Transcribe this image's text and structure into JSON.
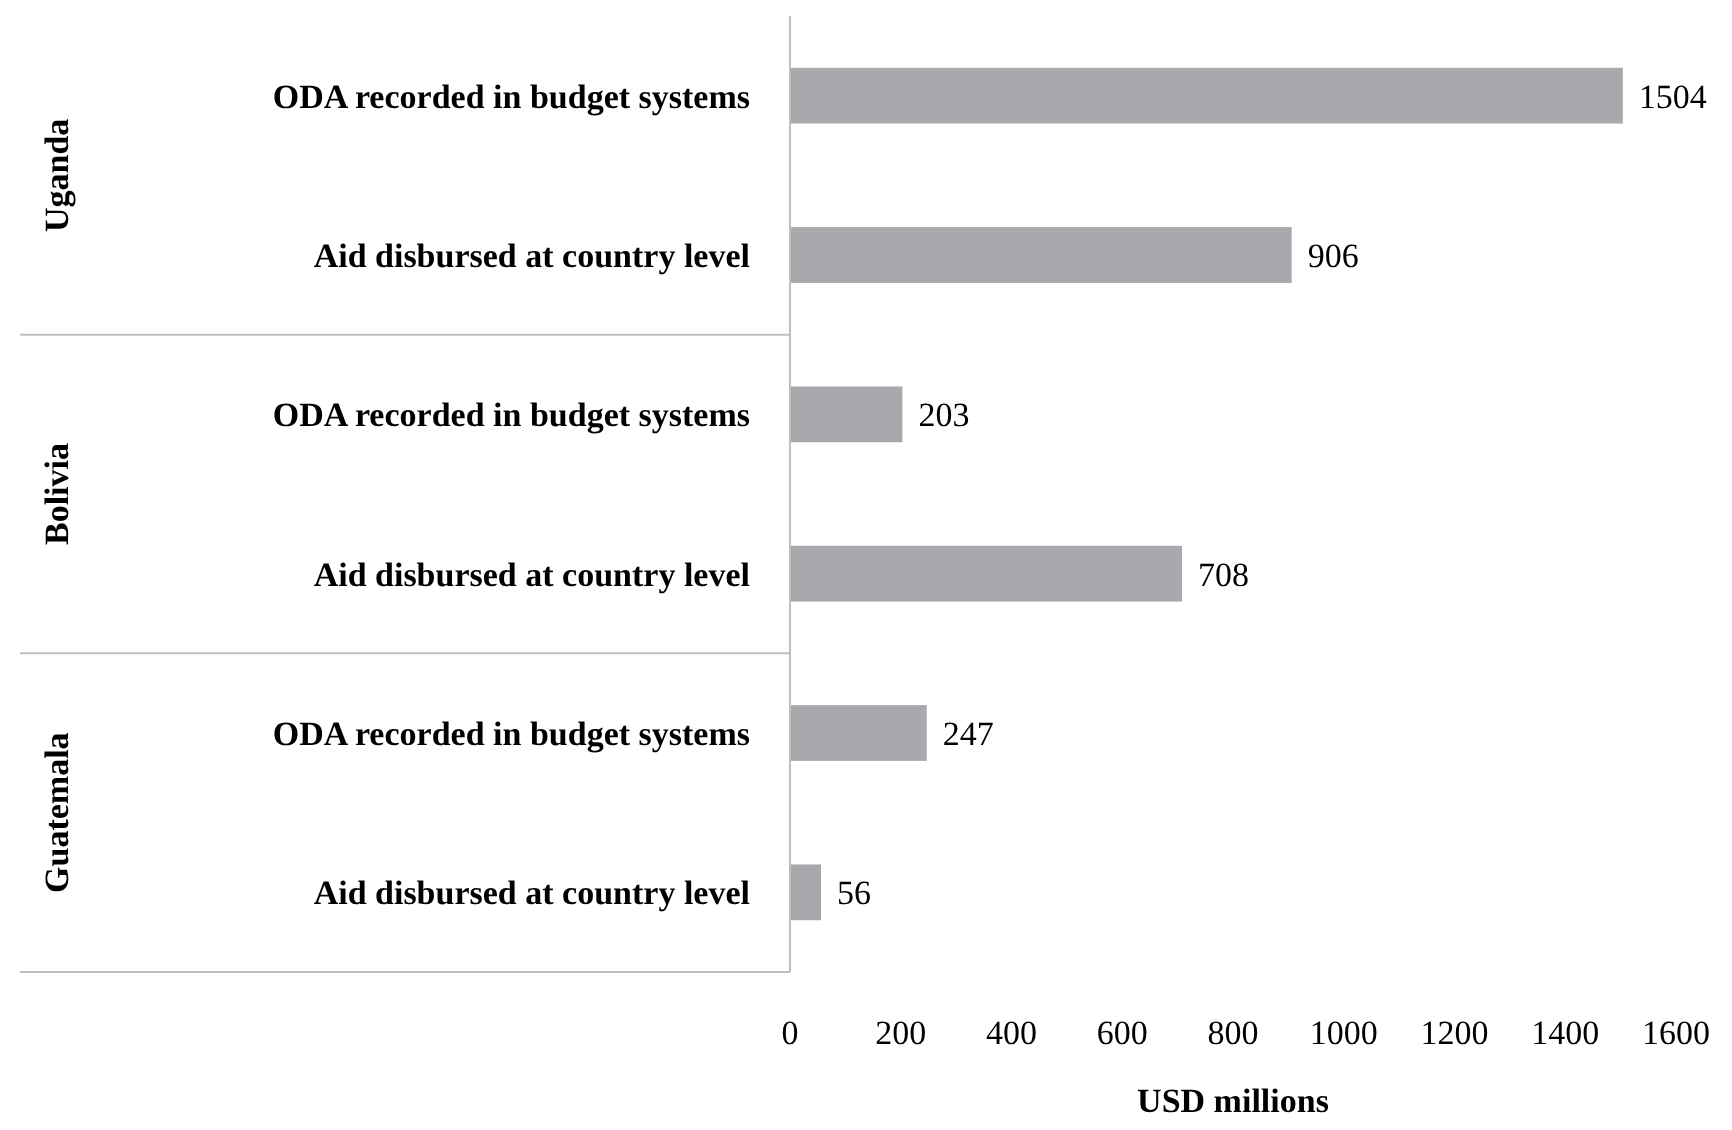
{
  "chart_data": {
    "type": "bar",
    "orientation": "horizontal",
    "xlabel": "USD millions",
    "categories": [
      "ODA recorded in budget systems",
      "Aid disbursed at country level",
      "ODA recorded in budget systems",
      "Aid disbursed at country level",
      "ODA recorded in budget systems",
      "Aid disbursed at country level"
    ],
    "values": [
      1504,
      906,
      203,
      708,
      247,
      56
    ],
    "color": "#a7a9ac",
    "xlim": [
      0,
      1600
    ],
    "xticks": [
      0,
      200,
      400,
      600,
      800,
      1000,
      1200,
      1400,
      1600
    ],
    "data_labels": true,
    "grid": false,
    "annotations": [
      "Uganda",
      "Bolivia",
      "Guatemala"
    ]
  }
}
